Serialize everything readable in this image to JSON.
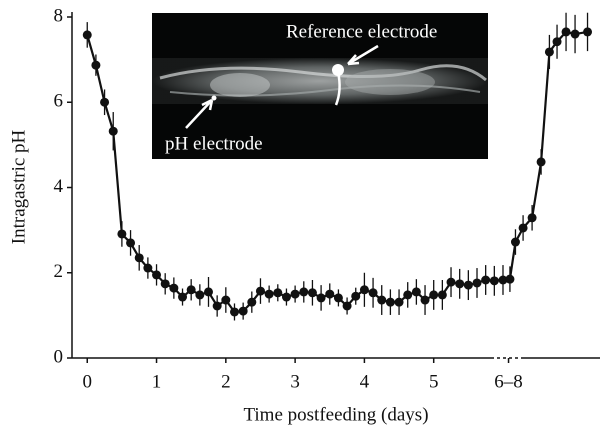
{
  "chart_data": {
    "type": "line",
    "xlabel": "Time postfeeding (days)",
    "ylabel": "Intragastric pH",
    "annotations": [
      "Reference electrode",
      "pH electrode"
    ],
    "xlim": [
      -0.22,
      7.4
    ],
    "ylim": [
      0,
      8
    ],
    "xticks": [
      0,
      1,
      2,
      3,
      4,
      5,
      {
        "value": 6.08,
        "label": "6–8"
      }
    ],
    "yticks": [
      0,
      2,
      4,
      6,
      8
    ],
    "series": [
      {
        "name": "pH",
        "color": "#111111",
        "x": [
          0,
          0.125,
          0.25,
          0.375,
          0.5,
          0.625,
          0.75,
          0.875,
          1.0,
          1.125,
          1.25,
          1.375,
          1.5,
          1.625,
          1.75,
          1.875,
          2.0,
          2.125,
          2.25,
          2.375,
          2.5,
          2.625,
          2.75,
          2.875,
          3.0,
          3.125,
          3.25,
          3.375,
          3.5,
          3.625,
          3.75,
          3.875,
          4.0,
          4.125,
          4.25,
          4.375,
          4.5,
          4.625,
          4.75,
          4.875,
          5.0,
          5.125,
          5.25,
          5.375,
          5.5,
          5.625,
          5.75,
          5.875,
          6.0,
          6.1,
          6.18,
          6.29,
          6.42,
          6.55,
          6.67,
          6.78,
          6.91,
          7.04,
          7.22
        ],
        "values": [
          7.58,
          6.87,
          6.0,
          5.32,
          2.91,
          2.7,
          2.35,
          2.11,
          1.95,
          1.74,
          1.64,
          1.43,
          1.6,
          1.48,
          1.55,
          1.22,
          1.36,
          1.08,
          1.1,
          1.31,
          1.57,
          1.5,
          1.53,
          1.43,
          1.5,
          1.55,
          1.53,
          1.41,
          1.5,
          1.41,
          1.22,
          1.45,
          1.6,
          1.53,
          1.36,
          1.31,
          1.31,
          1.48,
          1.55,
          1.36,
          1.48,
          1.48,
          1.78,
          1.74,
          1.71,
          1.76,
          1.83,
          1.81,
          1.83,
          1.85,
          2.72,
          3.05,
          3.29,
          4.6,
          7.18,
          7.42,
          7.65,
          7.6,
          7.65
        ],
        "errors": [
          0.3,
          0.25,
          0.3,
          0.45,
          0.3,
          0.3,
          0.3,
          0.25,
          0.25,
          0.25,
          0.25,
          0.2,
          0.25,
          0.25,
          0.35,
          0.25,
          0.3,
          0.2,
          0.2,
          0.25,
          0.3,
          0.2,
          0.2,
          0.2,
          0.2,
          0.25,
          0.3,
          0.3,
          0.25,
          0.2,
          0.2,
          0.2,
          0.4,
          0.35,
          0.35,
          0.3,
          0.3,
          0.3,
          0.3,
          0.35,
          0.35,
          0.35,
          0.35,
          0.35,
          0.35,
          0.35,
          0.35,
          0.35,
          0.35,
          0.3,
          0.3,
          0.3,
          0.3,
          0.3,
          0.4,
          0.4,
          0.45,
          0.45,
          0.45
        ]
      }
    ]
  }
}
